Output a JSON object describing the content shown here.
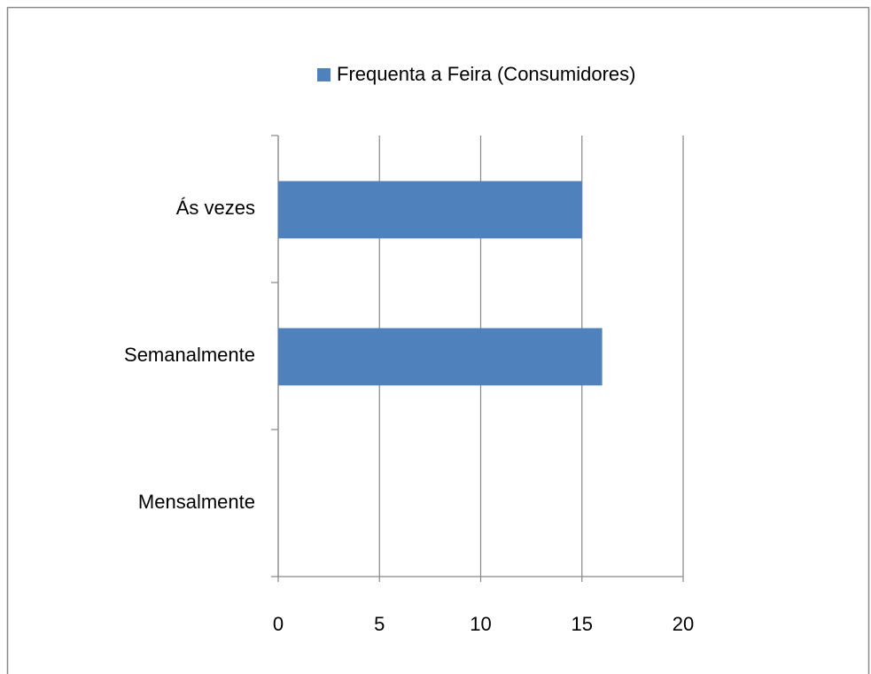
{
  "chart_data": {
    "type": "bar",
    "orientation": "horizontal",
    "categories": [
      "Mensalmente",
      "Semanalmente",
      "Ás vezes"
    ],
    "series": [
      {
        "name": "Frequenta a Feira (Consumidores)",
        "color": "#4f81bd",
        "values": [
          0,
          16,
          15
        ]
      }
    ],
    "xlim": [
      0,
      20
    ],
    "xticks": [
      0,
      5,
      10,
      15,
      20
    ],
    "grid": true,
    "legend": "top"
  }
}
